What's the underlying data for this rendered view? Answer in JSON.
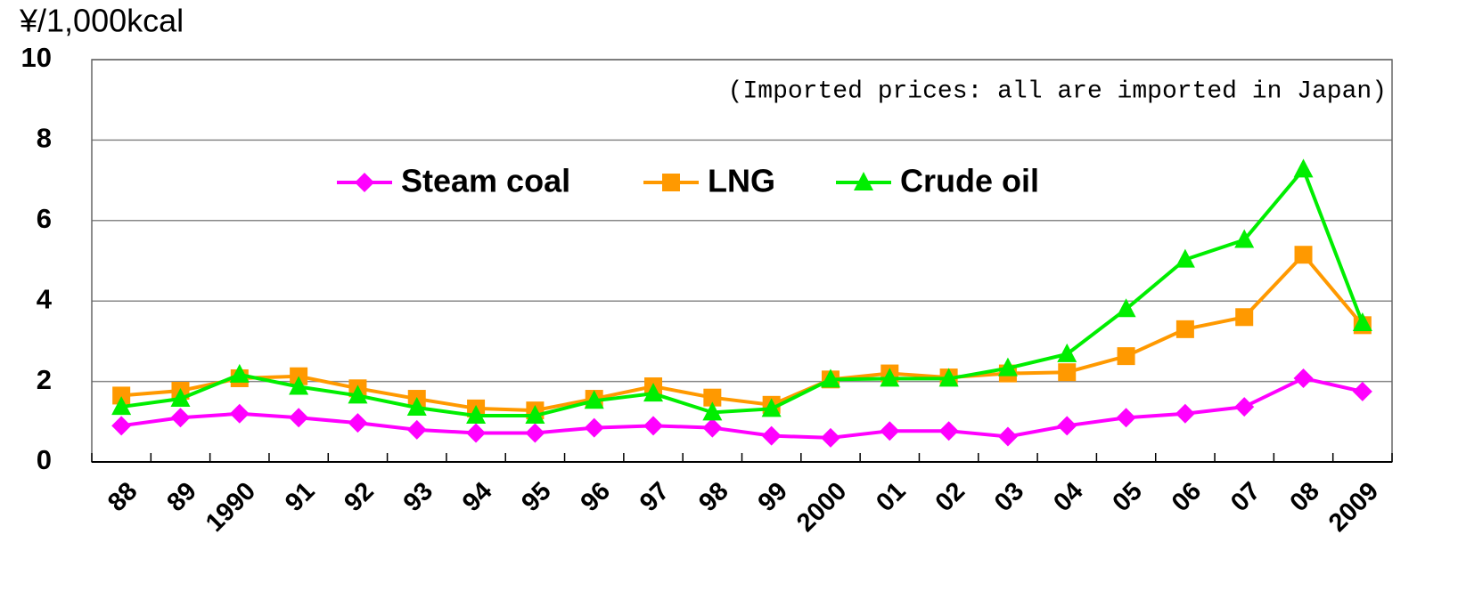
{
  "chart_data": {
    "type": "line",
    "y_label": "¥/1,000kcal",
    "annotation": "(Imported prices: all are imported in Japan)",
    "categories": [
      "88",
      "89",
      "1990",
      "91",
      "92",
      "93",
      "94",
      "95",
      "96",
      "97",
      "98",
      "99",
      "2000",
      "01",
      "02",
      "03",
      "04",
      "05",
      "06",
      "07",
      "08",
      "2009"
    ],
    "series": [
      {
        "name": "Steam coal",
        "color": "#ff00ff",
        "marker": "diamond",
        "values": [
          0.9,
          1.1,
          1.2,
          1.1,
          0.97,
          0.8,
          0.72,
          0.72,
          0.85,
          0.9,
          0.85,
          0.65,
          0.6,
          0.77,
          0.77,
          0.63,
          0.9,
          1.1,
          1.2,
          1.37,
          2.08,
          1.75
        ]
      },
      {
        "name": "LNG",
        "color": "#ff9900",
        "marker": "square",
        "values": [
          1.65,
          1.77,
          2.08,
          2.13,
          1.83,
          1.57,
          1.33,
          1.28,
          1.57,
          1.88,
          1.6,
          1.42,
          2.05,
          2.2,
          2.1,
          2.2,
          2.23,
          2.63,
          3.3,
          3.6,
          5.15,
          3.4
        ]
      },
      {
        "name": "Crude oil",
        "color": "#00ee00",
        "marker": "triangle",
        "values": [
          1.37,
          1.57,
          2.17,
          1.87,
          1.65,
          1.35,
          1.15,
          1.15,
          1.52,
          1.7,
          1.23,
          1.32,
          2.05,
          2.07,
          2.07,
          2.33,
          2.68,
          3.8,
          5.03,
          5.52,
          7.27,
          3.45
        ]
      }
    ],
    "ylim": [
      0,
      10
    ],
    "yticks": [
      0,
      2,
      4,
      6,
      8,
      10
    ],
    "grid": true,
    "legend": "upper center"
  }
}
